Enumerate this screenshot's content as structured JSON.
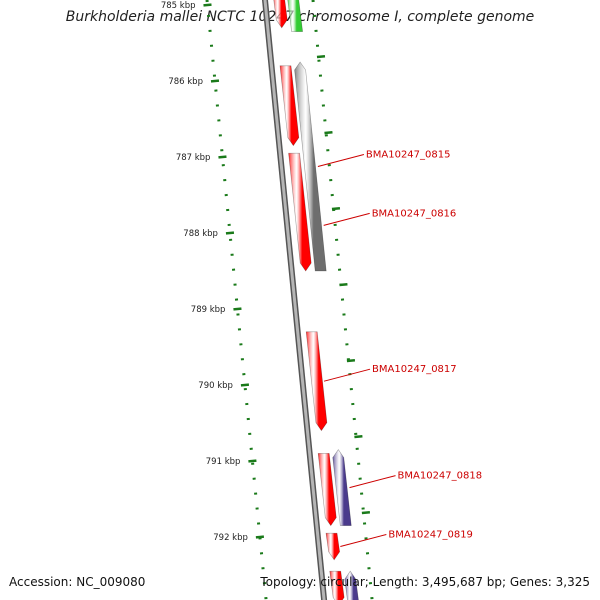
{
  "title": "Burkholderia mallei NCTC 10247 chromosome I, complete genome",
  "footer": {
    "accession": "Accession: NC_009080",
    "summary": "Topology: circular; Length: 3,495,687 bp; Genes: 3,325"
  },
  "colors": {
    "forward_cds": "#ff0000",
    "reverse_gene_gray": "#6e6e6e",
    "reverse_gene_green": "#33cc33",
    "reverse_gene_purple": "#4a3a8c",
    "backbone": "#8a8a8a",
    "tick_marks": "#1a7a1a",
    "gene_label": "#cc0000"
  },
  "ticks": [
    {
      "label": "785 kbp",
      "kbp": 785
    },
    {
      "label": "786 kbp",
      "kbp": 786
    },
    {
      "label": "787 kbp",
      "kbp": 787
    },
    {
      "label": "788 kbp",
      "kbp": 788
    },
    {
      "label": "789 kbp",
      "kbp": 789
    },
    {
      "label": "790 kbp",
      "kbp": 790
    },
    {
      "label": "791 kbp",
      "kbp": 791
    },
    {
      "label": "792 kbp",
      "kbp": 792
    }
  ],
  "features": [
    {
      "strand": "forward",
      "start_kbp": 784.8,
      "end_kbp": 785.3,
      "color_key": "forward_cds"
    },
    {
      "strand": "reverse",
      "start_kbp": 784.8,
      "end_kbp": 785.35,
      "color_key": "reverse_gene_green"
    },
    {
      "strand": "forward",
      "start_kbp": 785.8,
      "end_kbp": 786.85,
      "color_key": "forward_cds"
    },
    {
      "strand": "reverse",
      "start_kbp": 785.75,
      "end_kbp": 788.5,
      "color_key": "reverse_gene_gray",
      "label": "BMA10247_0815"
    },
    {
      "strand": "forward",
      "start_kbp": 786.95,
      "end_kbp": 788.5,
      "color_key": "forward_cds"
    },
    {
      "strand": "forward",
      "start_kbp": 789.3,
      "end_kbp": 790.6,
      "color_key": "forward_cds",
      "label": "BMA10247_0817"
    },
    {
      "strand": "forward",
      "start_kbp": 790.9,
      "end_kbp": 791.85,
      "color_key": "forward_cds"
    },
    {
      "strand": "reverse",
      "start_kbp": 790.85,
      "end_kbp": 791.85,
      "color_key": "reverse_gene_purple",
      "label": "BMA10247_0818"
    },
    {
      "strand": "forward",
      "start_kbp": 791.95,
      "end_kbp": 792.3,
      "color_key": "forward_cds",
      "label": "BMA10247_0819"
    },
    {
      "strand": "forward",
      "start_kbp": 792.45,
      "end_kbp": 792.9,
      "color_key": "forward_cds"
    },
    {
      "strand": "reverse",
      "start_kbp": 792.45,
      "end_kbp": 792.9,
      "color_key": "reverse_gene_purple"
    }
  ],
  "extra_labels": [
    {
      "label": "BMA10247_0816",
      "kbp": 787.9
    }
  ]
}
